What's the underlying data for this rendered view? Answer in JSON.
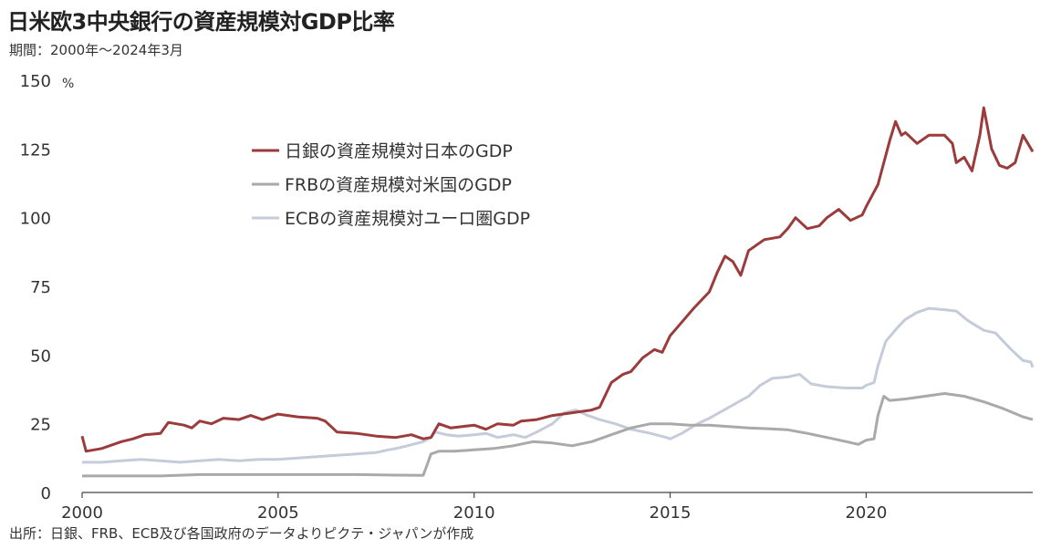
{
  "header": {
    "title": "日米欧3中央銀行の資産規模対GDP比率",
    "subtitle": "期間：2000年～2024年3月"
  },
  "footer": {
    "source": "出所：日銀、FRB、ECB及び各国政府のデータよりピクテ・ジャパンが作成"
  },
  "chart_data": {
    "type": "line",
    "title": "日米欧3中央銀行の資産規模対GDP比率",
    "subtitle": "期間：2000年～2024年3月",
    "ylabel": "%",
    "xlim": [
      2000,
      2024.25
    ],
    "ylim": [
      0,
      150
    ],
    "yticks": [
      0,
      25,
      50,
      75,
      100,
      125,
      150
    ],
    "xticks": [
      2000,
      2005,
      2010,
      2015,
      2020
    ],
    "legend_position": "top-left",
    "grid": false,
    "series": [
      {
        "name": "日銀の資産規模対日本のGDP",
        "color": "#9b3b3b",
        "points": [
          [
            2000.0,
            20.5
          ],
          [
            2000.1,
            15
          ],
          [
            2000.5,
            16
          ],
          [
            2000.8,
            17.5
          ],
          [
            2001.0,
            18.5
          ],
          [
            2001.3,
            19.5
          ],
          [
            2001.6,
            21
          ],
          [
            2002.0,
            21.5
          ],
          [
            2002.2,
            25.5
          ],
          [
            2002.6,
            24.5
          ],
          [
            2002.8,
            23.5
          ],
          [
            2003.0,
            26
          ],
          [
            2003.3,
            25
          ],
          [
            2003.6,
            27
          ],
          [
            2004.0,
            26.5
          ],
          [
            2004.3,
            28
          ],
          [
            2004.6,
            26.5
          ],
          [
            2005.0,
            28.5
          ],
          [
            2005.5,
            27.5
          ],
          [
            2006.0,
            27
          ],
          [
            2006.2,
            26
          ],
          [
            2006.5,
            22
          ],
          [
            2007.0,
            21.5
          ],
          [
            2007.5,
            20.5
          ],
          [
            2008.0,
            20
          ],
          [
            2008.4,
            21
          ],
          [
            2008.7,
            19.5
          ],
          [
            2008.9,
            20
          ],
          [
            2009.1,
            25
          ],
          [
            2009.4,
            23.5
          ],
          [
            2009.7,
            24
          ],
          [
            2010.0,
            24.5
          ],
          [
            2010.3,
            23
          ],
          [
            2010.6,
            25
          ],
          [
            2011.0,
            24.5
          ],
          [
            2011.2,
            26
          ],
          [
            2011.6,
            26.5
          ],
          [
            2012.0,
            28
          ],
          [
            2012.5,
            29
          ],
          [
            2013.0,
            30
          ],
          [
            2013.2,
            31
          ],
          [
            2013.5,
            40
          ],
          [
            2013.8,
            43
          ],
          [
            2014.0,
            44
          ],
          [
            2014.3,
            49
          ],
          [
            2014.6,
            52
          ],
          [
            2014.8,
            51
          ],
          [
            2015.0,
            57
          ],
          [
            2015.3,
            62
          ],
          [
            2015.6,
            67
          ],
          [
            2016.0,
            73
          ],
          [
            2016.2,
            80
          ],
          [
            2016.4,
            86
          ],
          [
            2016.6,
            84
          ],
          [
            2016.8,
            79
          ],
          [
            2017.0,
            88
          ],
          [
            2017.4,
            92
          ],
          [
            2017.8,
            93
          ],
          [
            2018.0,
            96
          ],
          [
            2018.2,
            100
          ],
          [
            2018.5,
            96
          ],
          [
            2018.8,
            97
          ],
          [
            2019.0,
            100
          ],
          [
            2019.3,
            103
          ],
          [
            2019.6,
            99
          ],
          [
            2019.9,
            101
          ],
          [
            2020.0,
            104
          ],
          [
            2020.3,
            112
          ],
          [
            2020.6,
            128
          ],
          [
            2020.75,
            135
          ],
          [
            2020.9,
            130
          ],
          [
            2021.0,
            131
          ],
          [
            2021.3,
            127
          ],
          [
            2021.6,
            130
          ],
          [
            2022.0,
            130
          ],
          [
            2022.2,
            127
          ],
          [
            2022.3,
            120
          ],
          [
            2022.5,
            122
          ],
          [
            2022.7,
            117
          ],
          [
            2022.9,
            130
          ],
          [
            2023.0,
            140
          ],
          [
            2023.2,
            125
          ],
          [
            2023.4,
            119
          ],
          [
            2023.6,
            118
          ],
          [
            2023.8,
            120
          ],
          [
            2024.0,
            130
          ],
          [
            2024.25,
            124
          ]
        ]
      },
      {
        "name": "FRBの資産規模対米国のGDP",
        "color": "#a9a9a9",
        "points": [
          [
            2000.0,
            6
          ],
          [
            2001.0,
            6
          ],
          [
            2002.0,
            6
          ],
          [
            2003.0,
            6.5
          ],
          [
            2004.0,
            6.5
          ],
          [
            2005.0,
            6.5
          ],
          [
            2006.0,
            6.5
          ],
          [
            2007.0,
            6.5
          ],
          [
            2008.0,
            6.3
          ],
          [
            2008.7,
            6.2
          ],
          [
            2008.8,
            10
          ],
          [
            2008.9,
            14
          ],
          [
            2009.1,
            15
          ],
          [
            2009.5,
            15
          ],
          [
            2010.0,
            15.5
          ],
          [
            2010.5,
            16
          ],
          [
            2011.0,
            17
          ],
          [
            2011.5,
            18.5
          ],
          [
            2012.0,
            18
          ],
          [
            2012.5,
            17
          ],
          [
            2013.0,
            18.5
          ],
          [
            2013.5,
            21
          ],
          [
            2014.0,
            23.5
          ],
          [
            2014.5,
            25
          ],
          [
            2015.0,
            25
          ],
          [
            2015.5,
            24.5
          ],
          [
            2016.0,
            24.5
          ],
          [
            2016.5,
            24
          ],
          [
            2017.0,
            23.5
          ],
          [
            2017.5,
            23.2
          ],
          [
            2018.0,
            22.8
          ],
          [
            2018.5,
            21.5
          ],
          [
            2019.0,
            20
          ],
          [
            2019.5,
            18.5
          ],
          [
            2019.8,
            17.5
          ],
          [
            2020.0,
            19
          ],
          [
            2020.2,
            19.5
          ],
          [
            2020.3,
            28
          ],
          [
            2020.45,
            35
          ],
          [
            2020.6,
            33.5
          ],
          [
            2021.0,
            34
          ],
          [
            2021.5,
            35
          ],
          [
            2022.0,
            36
          ],
          [
            2022.5,
            35
          ],
          [
            2023.0,
            33
          ],
          [
            2023.5,
            30.5
          ],
          [
            2024.0,
            27.5
          ],
          [
            2024.25,
            26.5
          ]
        ]
      },
      {
        "name": "ECBの資産規模対ユーロ圏GDP",
        "color": "#c5ccd9",
        "points": [
          [
            2000.0,
            11
          ],
          [
            2000.5,
            11
          ],
          [
            2001.0,
            11.5
          ],
          [
            2001.5,
            12
          ],
          [
            2002.0,
            11.5
          ],
          [
            2002.5,
            11
          ],
          [
            2003.0,
            11.5
          ],
          [
            2003.5,
            12
          ],
          [
            2004.0,
            11.5
          ],
          [
            2004.5,
            12
          ],
          [
            2005.0,
            12
          ],
          [
            2005.5,
            12.5
          ],
          [
            2006.0,
            13
          ],
          [
            2006.5,
            13.5
          ],
          [
            2007.0,
            14
          ],
          [
            2007.5,
            14.5
          ],
          [
            2007.8,
            15.5
          ],
          [
            2008.0,
            16
          ],
          [
            2008.3,
            17
          ],
          [
            2008.7,
            18.5
          ],
          [
            2008.9,
            20
          ],
          [
            2009.0,
            22
          ],
          [
            2009.3,
            21
          ],
          [
            2009.6,
            20.5
          ],
          [
            2010.0,
            21
          ],
          [
            2010.3,
            21.5
          ],
          [
            2010.6,
            20
          ],
          [
            2011.0,
            21
          ],
          [
            2011.3,
            20
          ],
          [
            2011.6,
            22
          ],
          [
            2012.0,
            25
          ],
          [
            2012.3,
            29
          ],
          [
            2012.6,
            30
          ],
          [
            2012.9,
            28
          ],
          [
            2013.2,
            26.5
          ],
          [
            2013.6,
            25
          ],
          [
            2014.0,
            23
          ],
          [
            2014.5,
            21.5
          ],
          [
            2014.9,
            20
          ],
          [
            2015.0,
            19.5
          ],
          [
            2015.3,
            21.5
          ],
          [
            2015.7,
            25
          ],
          [
            2016.0,
            27
          ],
          [
            2016.5,
            31
          ],
          [
            2017.0,
            35
          ],
          [
            2017.3,
            39
          ],
          [
            2017.6,
            41.5
          ],
          [
            2018.0,
            42
          ],
          [
            2018.3,
            43
          ],
          [
            2018.6,
            39.5
          ],
          [
            2019.0,
            38.5
          ],
          [
            2019.5,
            38
          ],
          [
            2019.9,
            38
          ],
          [
            2020.0,
            39
          ],
          [
            2020.2,
            40
          ],
          [
            2020.3,
            46
          ],
          [
            2020.5,
            55
          ],
          [
            2020.8,
            60
          ],
          [
            2021.0,
            63
          ],
          [
            2021.3,
            65.5
          ],
          [
            2021.6,
            67
          ],
          [
            2022.0,
            66.5
          ],
          [
            2022.3,
            66
          ],
          [
            2022.6,
            62.5
          ],
          [
            2023.0,
            59
          ],
          [
            2023.3,
            58
          ],
          [
            2023.5,
            55
          ],
          [
            2023.7,
            52
          ],
          [
            2024.0,
            48
          ],
          [
            2024.2,
            47.5
          ],
          [
            2024.25,
            45.5
          ]
        ]
      }
    ]
  }
}
